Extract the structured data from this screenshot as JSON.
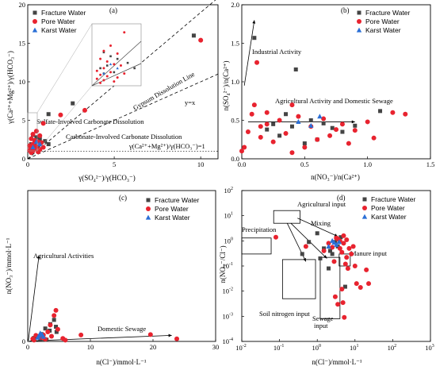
{
  "colors": {
    "fracture": "#444444",
    "pore": "#e8232f",
    "karst": "#2b6fd6"
  },
  "legend": {
    "fracture": "Fracture Water",
    "pore": "Pore Water",
    "karst": "Karst Water"
  },
  "chart_data": [
    {
      "id": "a",
      "type": "scatter",
      "panel_label": "(a)",
      "xlabel": "γ(SO₄²⁻)/γ(HCO₃⁻)",
      "ylabel": "γ(Ca²⁺+Mg²⁺)/γ(HCO₃⁻)",
      "xlim": [
        0,
        11
      ],
      "ylim": [
        0,
        20
      ],
      "xticks": [
        0,
        5,
        10
      ],
      "yticks": [
        0,
        5,
        10,
        15,
        20
      ],
      "legend_position": "top-left",
      "annotations": {
        "gypsum": "Gypsum Dissolution Line",
        "yx": "y=x",
        "sulfate": "Sulfate-Involved Carbonate Dissolution",
        "carbonate": "Carbonate-Involved Carbonate Dissolution",
        "unity": "γ(Ca²⁺+Mg²⁺)/γ(HCO₃⁻)=1"
      },
      "series": [
        {
          "name": "Fracture Water",
          "points": [
            [
              9.6,
              16
            ],
            [
              2.6,
              7.2
            ],
            [
              1.2,
              5.8
            ],
            [
              0.3,
              3.1
            ],
            [
              0.5,
              2.8
            ],
            [
              0.7,
              2.6
            ],
            [
              1.0,
              2.3
            ],
            [
              0.4,
              2.1
            ],
            [
              0.2,
              1.9
            ],
            [
              0.6,
              1.6
            ],
            [
              0.3,
              1.5
            ],
            [
              1.2,
              1.9
            ]
          ]
        },
        {
          "name": "Pore Water",
          "points": [
            [
              10.0,
              15.4
            ],
            [
              3.3,
              6.3
            ],
            [
              1.9,
              5.7
            ],
            [
              0.9,
              4.6
            ],
            [
              0.5,
              3.6
            ],
            [
              0.3,
              3.2
            ],
            [
              0.7,
              3.0
            ],
            [
              0.2,
              2.6
            ],
            [
              0.4,
              2.4
            ],
            [
              0.6,
              2.2
            ],
            [
              0.8,
              2.1
            ],
            [
              0.3,
              1.9
            ],
            [
              0.1,
              1.7
            ],
            [
              0.5,
              1.6
            ],
            [
              0.2,
              1.4
            ],
            [
              0.4,
              1.3
            ],
            [
              0.7,
              1.2
            ],
            [
              0.1,
              1.1
            ],
            [
              0.3,
              1.0
            ],
            [
              0.6,
              0.9
            ],
            [
              0.9,
              1.5
            ],
            [
              0.2,
              0.8
            ]
          ]
        },
        {
          "name": "Karst Water",
          "points": [
            [
              0.5,
              2.2
            ],
            [
              0.7,
              1.9
            ],
            [
              0.3,
              1.5
            ]
          ]
        }
      ]
    },
    {
      "id": "b",
      "type": "scatter",
      "panel_label": "(b)",
      "xlabel": "n(NO₃⁻)/n(Ca²⁺)",
      "ylabel": "n(SO₄²⁻)/n(Ca²⁺)",
      "xlim": [
        0,
        1.5
      ],
      "ylim": [
        0,
        2.0
      ],
      "xticks": [
        0,
        0.5,
        1.0,
        1.5
      ],
      "xticklabels": [
        "0.0",
        "0.5",
        "1.0",
        "1.5"
      ],
      "yticks": [
        0,
        0.5,
        1.0,
        1.5,
        2.0
      ],
      "yticklabels": [
        "0.0",
        "0.5",
        "1.0",
        "1.5",
        "2.0"
      ],
      "legend_position": "top-right",
      "annotations": {
        "industrial": "Industrial Activity",
        "agri": "Agricultural Activity and Domestic Sewage"
      },
      "series": [
        {
          "name": "Fracture Water",
          "points": [
            [
              0.1,
              1.57
            ],
            [
              0.43,
              1.16
            ],
            [
              0.35,
              0.58
            ],
            [
              0.55,
              0.5
            ],
            [
              0.65,
              0.46
            ],
            [
              0.72,
              0.4
            ],
            [
              0.25,
              0.45
            ],
            [
              0.4,
              0.42
            ],
            [
              0.8,
              0.35
            ],
            [
              0.3,
              0.3
            ],
            [
              0.6,
              0.25
            ],
            [
              0.5,
              0.2
            ],
            [
              0.9,
              0.43
            ],
            [
              1.1,
              0.62
            ],
            [
              0.2,
              0.38
            ]
          ]
        },
        {
          "name": "Pore Water",
          "points": [
            [
              0.12,
              1.25
            ],
            [
              0.1,
              0.7
            ],
            [
              0.2,
              0.6
            ],
            [
              0.08,
              0.58
            ],
            [
              0.4,
              0.7
            ],
            [
              0.3,
              0.5
            ],
            [
              0.45,
              0.55
            ],
            [
              0.55,
              0.42
            ],
            [
              0.65,
              0.52
            ],
            [
              0.7,
              0.3
            ],
            [
              0.75,
              0.38
            ],
            [
              0.05,
              0.35
            ],
            [
              0.15,
              0.28
            ],
            [
              0.25,
              0.22
            ],
            [
              0.35,
              0.33
            ],
            [
              0.5,
              0.15
            ],
            [
              0.6,
              0.25
            ],
            [
              0.8,
              0.45
            ],
            [
              0.9,
              0.37
            ],
            [
              1.0,
              0.48
            ],
            [
              1.05,
              0.27
            ],
            [
              1.2,
              0.6
            ],
            [
              1.3,
              0.58
            ],
            [
              0.02,
              0.15
            ],
            [
              0.0,
              0.1
            ],
            [
              0.85,
              0.2
            ],
            [
              0.4,
              0.08
            ],
            [
              0.2,
              0.45
            ],
            [
              0.15,
              0.42
            ]
          ]
        },
        {
          "name": "Karst Water",
          "points": [
            [
              0.45,
              0.48
            ],
            [
              0.55,
              0.43
            ],
            [
              0.62,
              0.55
            ]
          ]
        }
      ]
    },
    {
      "id": "c",
      "type": "scatter",
      "panel_label": "(c)",
      "xlabel": "n(Cl⁻)/mmol·L⁻¹",
      "ylabel": "n(NO₃⁻)/mmol·L⁻¹",
      "xlim": [
        0,
        30
      ],
      "ylim": [
        0,
        35
      ],
      "xticks": [
        0,
        10,
        20,
        30
      ],
      "yticks": [
        0
      ],
      "legend_position": "top-right",
      "annotations": {
        "agri": "Agricultural Activities",
        "domestic": "Domestic Sewage"
      },
      "series": [
        {
          "name": "Fracture Water",
          "points": [
            [
              4.2,
              5
            ],
            [
              3.6,
              4
            ],
            [
              4.5,
              3.4
            ],
            [
              2.8,
              3
            ],
            [
              3.5,
              2.5
            ],
            [
              4.6,
              2.2
            ],
            [
              2.2,
              1.7
            ],
            [
              1.5,
              1.2
            ],
            [
              1.0,
              0.8
            ],
            [
              2.0,
              0.6
            ],
            [
              3.0,
              0.4
            ]
          ]
        },
        {
          "name": "Pore Water",
          "points": [
            [
              4.5,
              7.2
            ],
            [
              4.2,
              6.0
            ],
            [
              3.6,
              3.8
            ],
            [
              4.8,
              2.8
            ],
            [
              3.2,
              2.2
            ],
            [
              2.5,
              1.5
            ],
            [
              1.8,
              1.0
            ],
            [
              1.3,
              1.4
            ],
            [
              0.8,
              0.6
            ],
            [
              2.2,
              0.9
            ],
            [
              5.6,
              0.7
            ],
            [
              8.5,
              1.5
            ],
            [
              19.6,
              1.6
            ],
            [
              23.8,
              0.6
            ],
            [
              6.0,
              0.3
            ],
            [
              1.0,
              0.3
            ],
            [
              3.8,
              1.2
            ],
            [
              2.8,
              0.5
            ]
          ]
        },
        {
          "name": "Karst Water",
          "points": [
            [
              2.0,
              1.9
            ],
            [
              2.3,
              1.6
            ],
            [
              1.8,
              1.3
            ],
            [
              2.5,
              1.1
            ],
            [
              1.6,
              0.9
            ]
          ]
        }
      ]
    },
    {
      "id": "d",
      "type": "scatter",
      "panel_label": "(d)",
      "log_scale": true,
      "xlabel": "n(Cl⁻)/mmol·L⁻¹",
      "ylabel": "n(NO₃⁻/Cl⁻)",
      "xlim": [
        0.01,
        1000
      ],
      "ylim": [
        0.0001,
        100
      ],
      "xtick_mantissa": "10",
      "xtick_exponents": [
        "-2",
        "-1",
        "0",
        "1",
        "2",
        "3"
      ],
      "ytick_mantissa": "10",
      "ytick_exponents": [
        "-4",
        "-3",
        "-2",
        "-1",
        "0",
        "1",
        "2"
      ],
      "legend_position": "top-right",
      "boxes": [
        {
          "label": "Agricultural input",
          "xrange": [
            0.07,
            0.35
          ],
          "yrange": [
            5,
            16
          ]
        },
        {
          "label": "Precipitation",
          "xrange": [
            0.01,
            0.06
          ],
          "yrange": [
            0.3,
            1.3
          ]
        },
        {
          "label": "Manure input",
          "xrange": [
            3.8,
            7.5
          ],
          "yrange": [
            0.1,
            0.3
          ]
        },
        {
          "label": "Soil nitrogen input",
          "xrange": [
            0.12,
            0.9
          ],
          "yrange": [
            0.005,
            0.18
          ]
        },
        {
          "label": "Sewage input",
          "xrange": [
            1.2,
            4.0
          ],
          "yrange": [
            0.0008,
            0.22
          ]
        }
      ],
      "mixing_label": "Mixing",
      "series": [
        {
          "name": "Fracture Water",
          "points": [
            [
              1.0,
              2.0
            ],
            [
              0.6,
              0.9
            ],
            [
              1.5,
              0.5
            ],
            [
              2.2,
              0.4
            ],
            [
              3.0,
              0.9
            ],
            [
              4.2,
              1.4
            ],
            [
              5.5,
              0.015
            ],
            [
              2.0,
              0.08
            ],
            [
              1.2,
              0.2
            ],
            [
              3.5,
              0.6
            ],
            [
              0.4,
              0.3
            ],
            [
              2.5,
              0.3
            ]
          ]
        },
        {
          "name": "Pore Water",
          "points": [
            [
              0.08,
              1.4
            ],
            [
              0.5,
              0.6
            ],
            [
              1.5,
              0.4
            ],
            [
              2.0,
              0.8
            ],
            [
              2.5,
              0.55
            ],
            [
              3.2,
              1.3
            ],
            [
              4.0,
              0.5
            ],
            [
              4.5,
              0.35
            ],
            [
              5.0,
              1.6
            ],
            [
              5.6,
              0.12
            ],
            [
              6.0,
              0.22
            ],
            [
              7.0,
              0.5
            ],
            [
              8.0,
              0.3
            ],
            [
              9.0,
              0.6
            ],
            [
              10.0,
              0.1
            ],
            [
              11.0,
              0.02
            ],
            [
              14.0,
              0.014
            ],
            [
              20.0,
              0.07
            ],
            [
              23.0,
              0.02
            ],
            [
              3.0,
              0.006
            ],
            [
              4.5,
              0.012
            ],
            [
              4.8,
              0.0035
            ],
            [
              5.2,
              0.0009
            ],
            [
              3.5,
              0.003
            ],
            [
              6.5,
              0.08
            ],
            [
              2.8,
              0.15
            ],
            [
              4.0,
              1.0
            ],
            [
              5.0,
              0.8
            ],
            [
              6.0,
              1.1
            ],
            [
              3.5,
              1.2
            ]
          ]
        },
        {
          "name": "Karst Water",
          "points": [
            [
              2.5,
              1.0
            ],
            [
              2.8,
              0.85
            ],
            [
              3.2,
              0.7
            ],
            [
              2.0,
              0.6
            ],
            [
              3.8,
              0.9
            ]
          ]
        }
      ]
    }
  ]
}
